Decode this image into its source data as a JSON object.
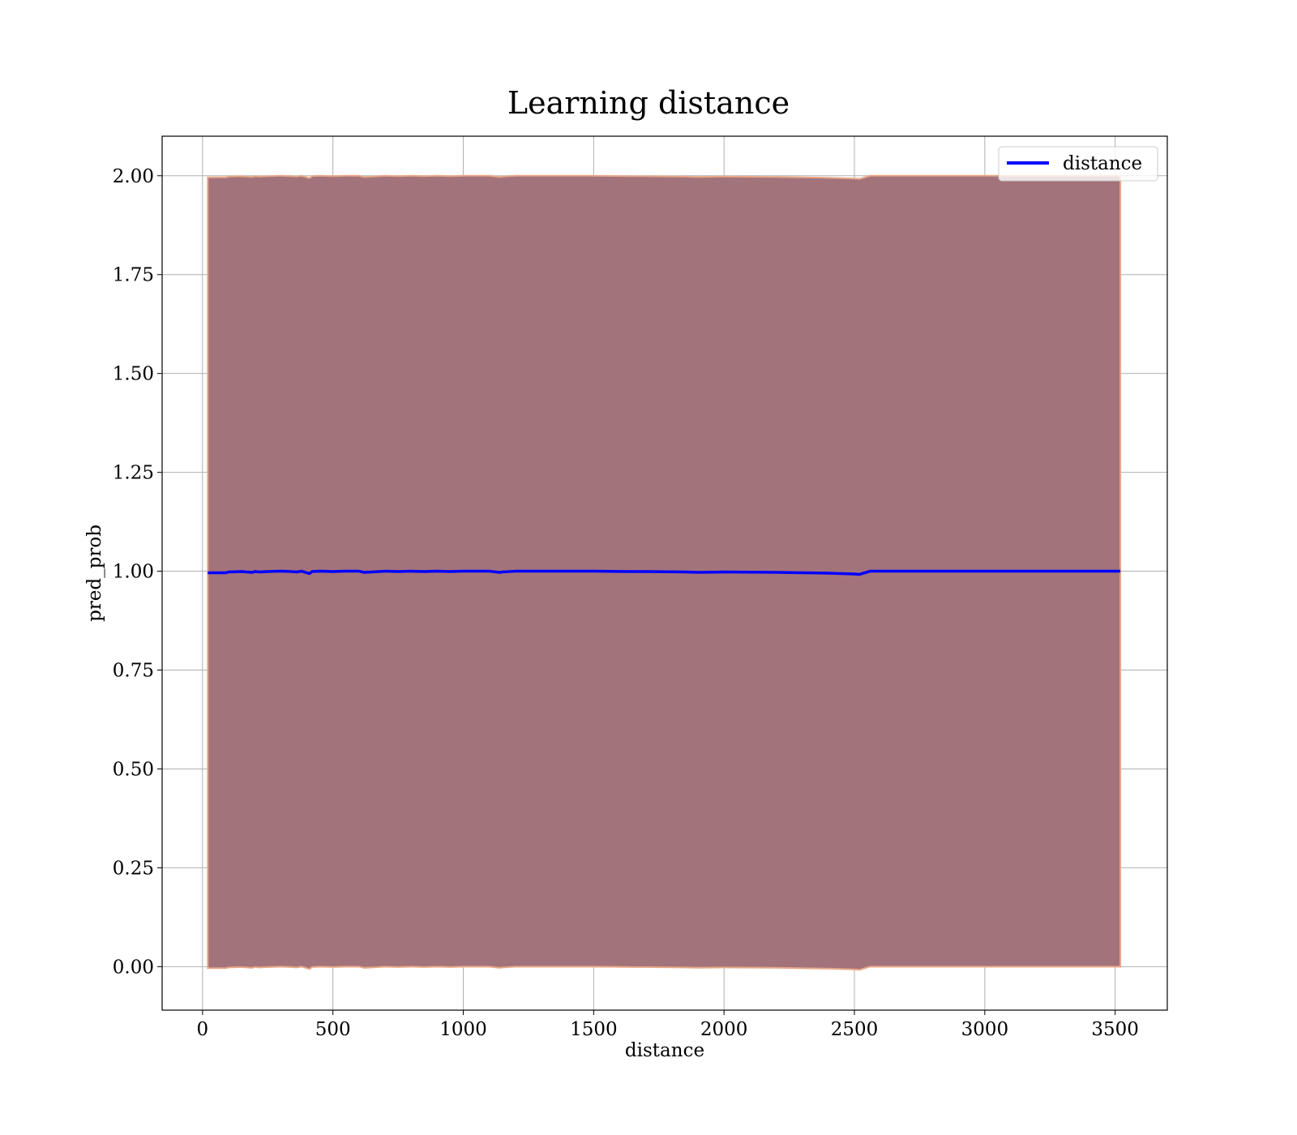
{
  "chart_data": {
    "type": "area",
    "title": "Learning distance",
    "xlabel": "distance",
    "ylabel": "pred_prob",
    "xlim": [
      -155,
      3700
    ],
    "ylim": [
      -0.11,
      2.1
    ],
    "xticks": [
      0,
      500,
      1000,
      1500,
      2000,
      2500,
      3000,
      3500
    ],
    "yticks": [
      0.0,
      0.25,
      0.5,
      0.75,
      1.0,
      1.25,
      1.5,
      1.75,
      2.0
    ],
    "xtick_labels": [
      "0",
      "500",
      "1000",
      "1500",
      "2000",
      "2500",
      "3000",
      "3500"
    ],
    "ytick_labels": [
      "0.00",
      "0.25",
      "0.50",
      "0.75",
      "1.00",
      "1.25",
      "1.50",
      "1.75",
      "2.00"
    ],
    "grid": true,
    "legend_position": "top-right",
    "colors": {
      "line": "#0000ff",
      "band_fill": "#a3737b",
      "band_edge": "#e8a888",
      "grid": "#b0b0b0"
    },
    "series": [
      {
        "name": "distance",
        "x": [
          20,
          90,
          100,
          150,
          190,
          200,
          220,
          250,
          300,
          340,
          360,
          380,
          410,
          420,
          450,
          500,
          550,
          600,
          620,
          650,
          700,
          750,
          800,
          850,
          900,
          950,
          1000,
          1050,
          1100,
          1140,
          1150,
          1200,
          1300,
          1500,
          1650,
          1700,
          1850,
          1900,
          2000,
          2200,
          2400,
          2500,
          2520,
          2560,
          2600,
          3000,
          3520
        ],
        "y": [
          0.996,
          0.996,
          0.998,
          0.999,
          0.997,
          0.999,
          0.998,
          0.999,
          1.0,
          0.999,
          0.998,
          1.0,
          0.994,
          0.999,
          1.0,
          0.999,
          1.0,
          1.0,
          0.997,
          0.998,
          1.0,
          0.999,
          1.0,
          0.999,
          1.0,
          0.999,
          1.0,
          1.0,
          1.0,
          0.997,
          0.998,
          1.0,
          1.0,
          1.0,
          0.999,
          0.999,
          0.998,
          0.997,
          0.998,
          0.997,
          0.995,
          0.993,
          0.992,
          1.0,
          1.0,
          1.0,
          1.0
        ],
        "band": {
          "lower": [
            -0.004,
            -0.004,
            -0.002,
            -0.001,
            -0.003,
            -0.001,
            -0.002,
            -0.001,
            0.0,
            -0.001,
            -0.002,
            0.0,
            -0.006,
            -0.001,
            0.0,
            -0.001,
            0.0,
            0.0,
            -0.003,
            -0.002,
            0.0,
            -0.001,
            0.0,
            -0.001,
            0.0,
            -0.001,
            0.0,
            0.0,
            0.0,
            -0.003,
            -0.002,
            0.0,
            0.0,
            0.0,
            -0.001,
            -0.001,
            -0.002,
            -0.003,
            -0.002,
            -0.003,
            -0.005,
            -0.007,
            -0.008,
            0.0,
            0.0,
            0.0,
            0.0
          ],
          "upper": [
            1.996,
            1.996,
            1.998,
            1.999,
            1.997,
            1.999,
            1.998,
            1.999,
            2.0,
            1.999,
            1.998,
            2.0,
            1.994,
            1.999,
            2.0,
            1.999,
            2.0,
            2.0,
            1.997,
            1.998,
            2.0,
            1.999,
            2.0,
            1.999,
            2.0,
            1.999,
            2.0,
            2.0,
            2.0,
            1.997,
            1.998,
            2.0,
            2.0,
            2.0,
            1.999,
            1.999,
            1.998,
            1.997,
            1.998,
            1.997,
            1.995,
            1.993,
            1.992,
            2.0,
            2.0,
            2.0,
            2.0
          ]
        }
      }
    ]
  }
}
